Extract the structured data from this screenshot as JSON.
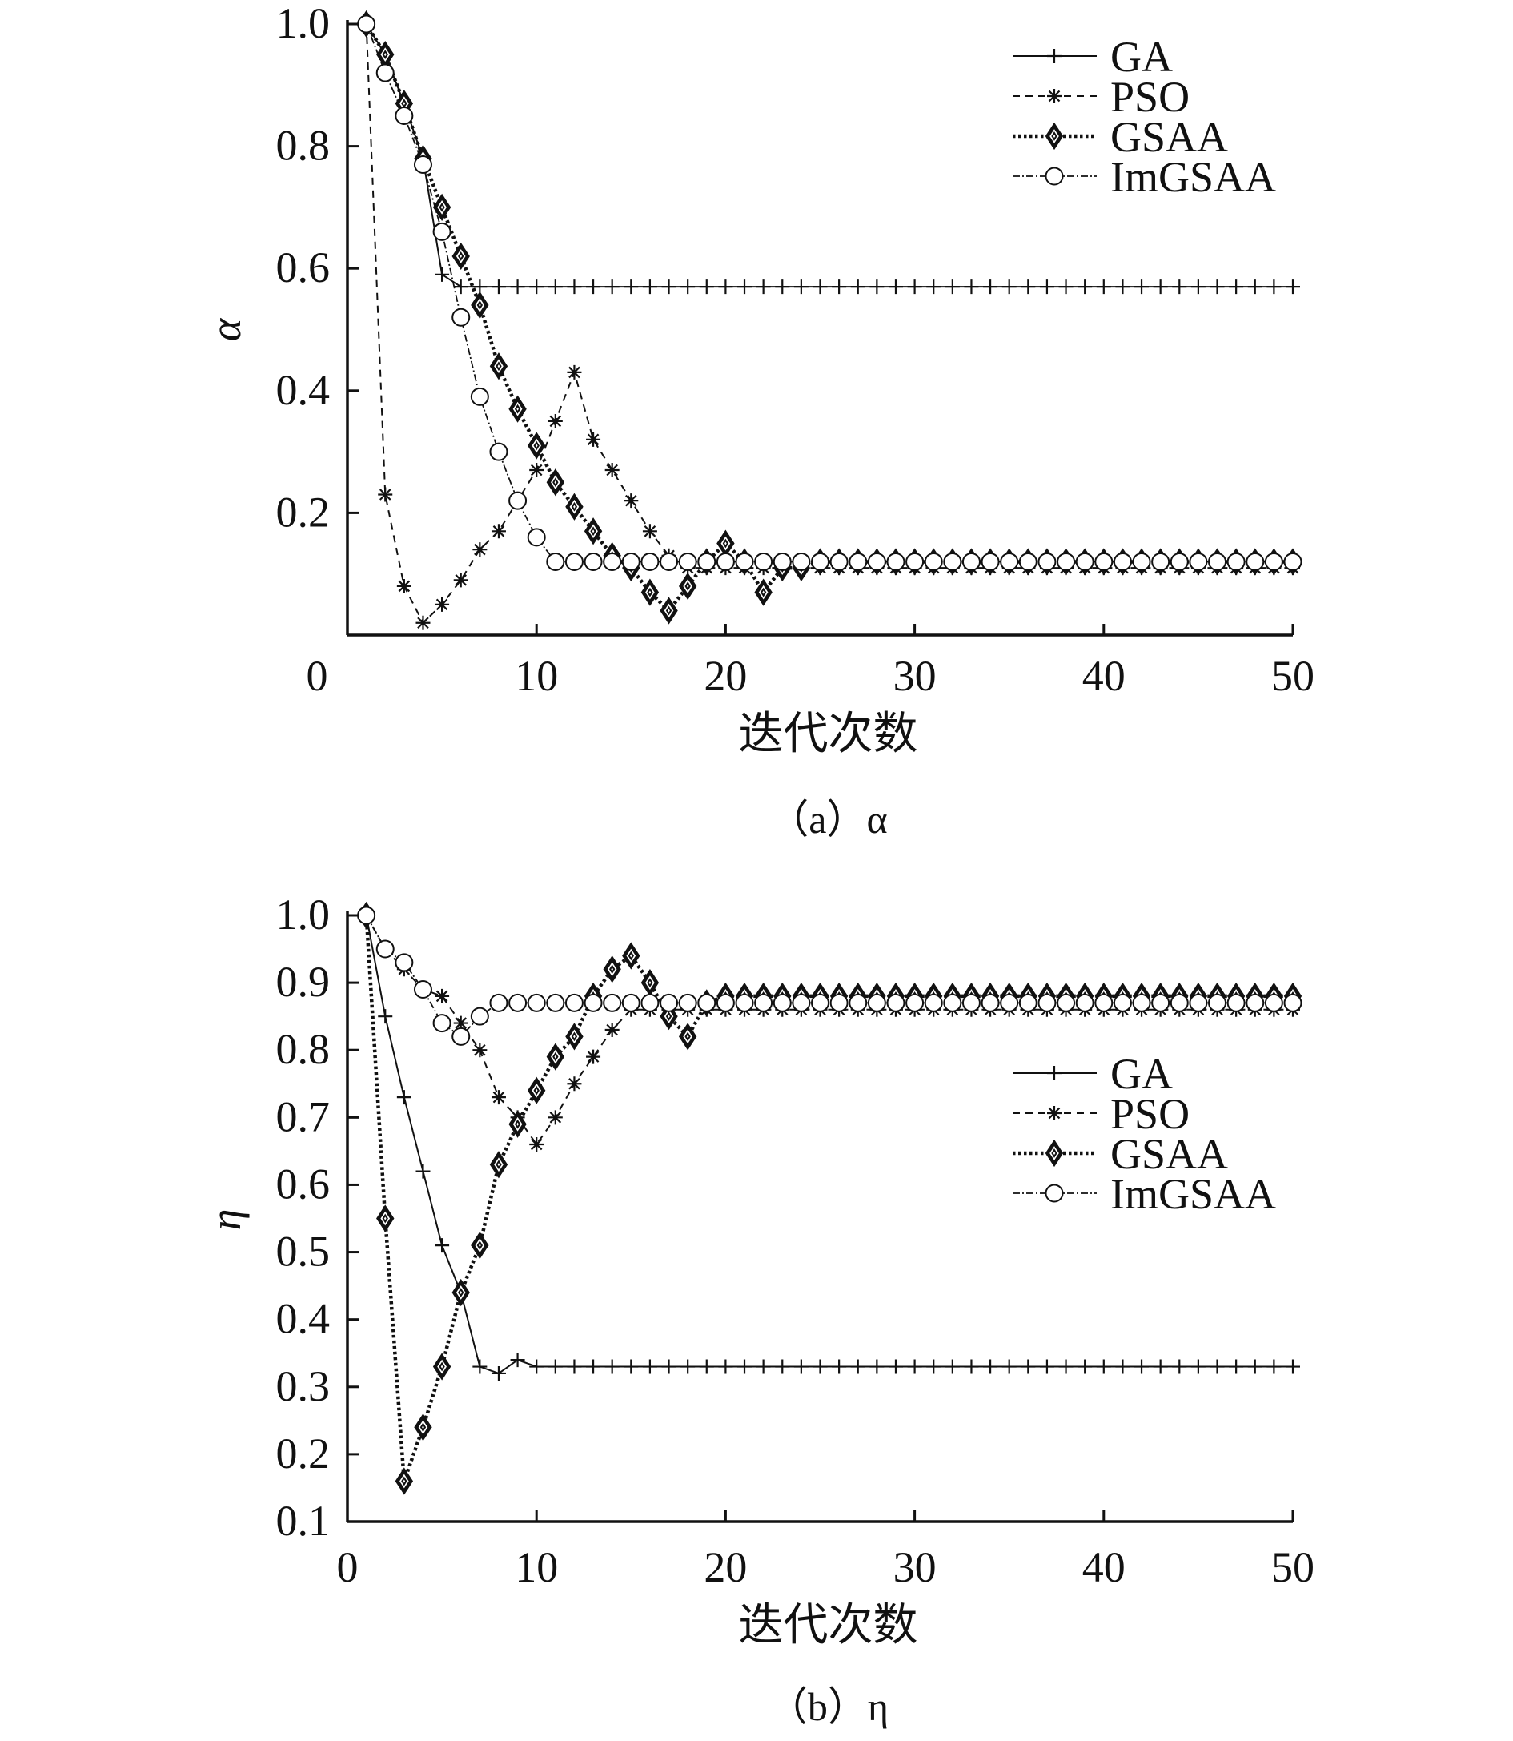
{
  "chart_data": [
    {
      "type": "line",
      "caption": "（a）α",
      "xlabel": "迭代次数",
      "ylabel": "α",
      "xlim": [
        1,
        50
      ],
      "ylim": [
        0,
        1.0
      ],
      "x_ticks": [
        "0",
        "10",
        "20",
        "30",
        "40",
        "50"
      ],
      "y_ticks": [
        "0.2",
        "0.4",
        "0.6",
        "0.8",
        "1.0"
      ],
      "legend_position": "top-right",
      "series": [
        {
          "name": "GA",
          "values": [
            1.0,
            0.95,
            0.87,
            0.78,
            0.59,
            0.57,
            0.57,
            0.57,
            0.57,
            0.57,
            0.57,
            0.57,
            0.57,
            0.57,
            0.57,
            0.57,
            0.57,
            0.57,
            0.57,
            0.57,
            0.57,
            0.57,
            0.57,
            0.57,
            0.57,
            0.57,
            0.57,
            0.57,
            0.57,
            0.57,
            0.57,
            0.57,
            0.57,
            0.57,
            0.57,
            0.57,
            0.57,
            0.57,
            0.57,
            0.57,
            0.57,
            0.57,
            0.57,
            0.57,
            0.57,
            0.57,
            0.57,
            0.57,
            0.57,
            0.57
          ]
        },
        {
          "name": "PSO",
          "values": [
            1.0,
            0.23,
            0.08,
            0.02,
            0.05,
            0.09,
            0.14,
            0.17,
            0.22,
            0.27,
            0.35,
            0.43,
            0.32,
            0.27,
            0.22,
            0.17,
            0.13,
            0.11,
            0.11,
            0.11,
            0.11,
            0.11,
            0.11,
            0.11,
            0.11,
            0.11,
            0.11,
            0.11,
            0.11,
            0.11,
            0.11,
            0.11,
            0.11,
            0.11,
            0.11,
            0.11,
            0.11,
            0.11,
            0.11,
            0.11,
            0.11,
            0.11,
            0.11,
            0.11,
            0.11,
            0.11,
            0.11,
            0.11,
            0.11,
            0.11
          ]
        },
        {
          "name": "GSAA",
          "values": [
            1.0,
            0.95,
            0.87,
            0.78,
            0.7,
            0.62,
            0.54,
            0.44,
            0.37,
            0.31,
            0.25,
            0.21,
            0.17,
            0.13,
            0.11,
            0.07,
            0.04,
            0.08,
            0.12,
            0.15,
            0.12,
            0.07,
            0.11,
            0.11,
            0.12,
            0.12,
            0.12,
            0.12,
            0.12,
            0.12,
            0.12,
            0.12,
            0.12,
            0.12,
            0.12,
            0.12,
            0.12,
            0.12,
            0.12,
            0.12,
            0.12,
            0.12,
            0.12,
            0.12,
            0.12,
            0.12,
            0.12,
            0.12,
            0.12,
            0.12
          ]
        },
        {
          "name": "ImGSAA",
          "values": [
            1.0,
            0.92,
            0.85,
            0.77,
            0.66,
            0.52,
            0.39,
            0.3,
            0.22,
            0.16,
            0.12,
            0.12,
            0.12,
            0.12,
            0.12,
            0.12,
            0.12,
            0.12,
            0.12,
            0.12,
            0.12,
            0.12,
            0.12,
            0.12,
            0.12,
            0.12,
            0.12,
            0.12,
            0.12,
            0.12,
            0.12,
            0.12,
            0.12,
            0.12,
            0.12,
            0.12,
            0.12,
            0.12,
            0.12,
            0.12,
            0.12,
            0.12,
            0.12,
            0.12,
            0.12,
            0.12,
            0.12,
            0.12,
            0.12,
            0.12
          ]
        }
      ]
    },
    {
      "type": "line",
      "caption": "（b）η",
      "xlabel": "迭代次数",
      "ylabel": "η",
      "xlim": [
        0,
        50
      ],
      "ylim": [
        0.1,
        1.0
      ],
      "x_ticks": [
        "0",
        "10",
        "20",
        "30",
        "40",
        "50"
      ],
      "y_ticks": [
        "0.1",
        "0.2",
        "0.3",
        "0.4",
        "0.5",
        "0.6",
        "0.7",
        "0.8",
        "0.9",
        "1.0"
      ],
      "legend_position": "center-right",
      "series": [
        {
          "name": "GA",
          "values": [
            1.0,
            0.85,
            0.73,
            0.62,
            0.51,
            0.44,
            0.33,
            0.32,
            0.34,
            0.33,
            0.33,
            0.33,
            0.33,
            0.33,
            0.33,
            0.33,
            0.33,
            0.33,
            0.33,
            0.33,
            0.33,
            0.33,
            0.33,
            0.33,
            0.33,
            0.33,
            0.33,
            0.33,
            0.33,
            0.33,
            0.33,
            0.33,
            0.33,
            0.33,
            0.33,
            0.33,
            0.33,
            0.33,
            0.33,
            0.33,
            0.33,
            0.33,
            0.33,
            0.33,
            0.33,
            0.33,
            0.33,
            0.33,
            0.33,
            0.33
          ]
        },
        {
          "name": "PSO",
          "values": [
            1.0,
            0.95,
            0.92,
            0.89,
            0.88,
            0.84,
            0.8,
            0.73,
            0.7,
            0.66,
            0.7,
            0.75,
            0.79,
            0.83,
            0.86,
            0.86,
            0.86,
            0.86,
            0.86,
            0.86,
            0.86,
            0.86,
            0.86,
            0.86,
            0.86,
            0.86,
            0.86,
            0.86,
            0.86,
            0.86,
            0.86,
            0.86,
            0.86,
            0.86,
            0.86,
            0.86,
            0.86,
            0.86,
            0.86,
            0.86,
            0.86,
            0.86,
            0.86,
            0.86,
            0.86,
            0.86,
            0.86,
            0.86,
            0.86,
            0.86
          ]
        },
        {
          "name": "GSAA",
          "values": [
            1.0,
            0.55,
            0.16,
            0.24,
            0.33,
            0.44,
            0.51,
            0.63,
            0.69,
            0.74,
            0.79,
            0.82,
            0.88,
            0.92,
            0.94,
            0.9,
            0.85,
            0.82,
            0.87,
            0.88,
            0.88,
            0.88,
            0.88,
            0.88,
            0.88,
            0.88,
            0.88,
            0.88,
            0.88,
            0.88,
            0.88,
            0.88,
            0.88,
            0.88,
            0.88,
            0.88,
            0.88,
            0.88,
            0.88,
            0.88,
            0.88,
            0.88,
            0.88,
            0.88,
            0.88,
            0.88,
            0.88,
            0.88,
            0.88,
            0.88
          ]
        },
        {
          "name": "ImGSAA",
          "values": [
            1.0,
            0.95,
            0.93,
            0.89,
            0.84,
            0.82,
            0.85,
            0.87,
            0.87,
            0.87,
            0.87,
            0.87,
            0.87,
            0.87,
            0.87,
            0.87,
            0.87,
            0.87,
            0.87,
            0.87,
            0.87,
            0.87,
            0.87,
            0.87,
            0.87,
            0.87,
            0.87,
            0.87,
            0.87,
            0.87,
            0.87,
            0.87,
            0.87,
            0.87,
            0.87,
            0.87,
            0.87,
            0.87,
            0.87,
            0.87,
            0.87,
            0.87,
            0.87,
            0.87,
            0.87,
            0.87,
            0.87,
            0.87,
            0.87,
            0.87
          ]
        }
      ]
    }
  ]
}
